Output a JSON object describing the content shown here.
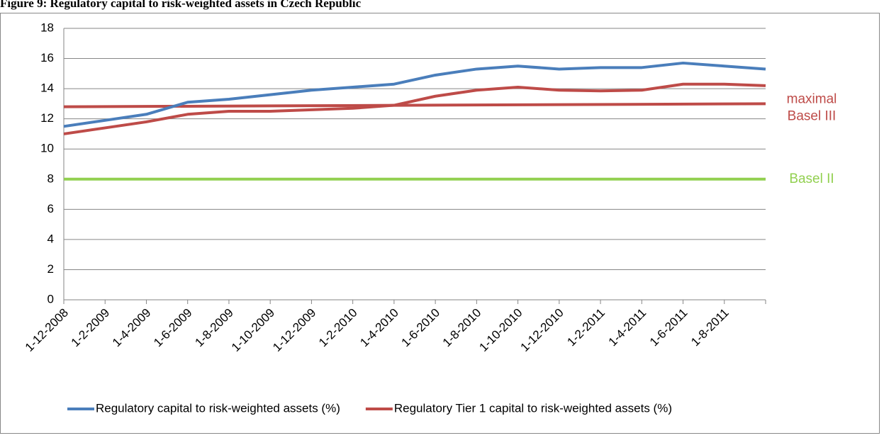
{
  "chart_data": {
    "type": "line",
    "title": "Figure 9: Regulatory capital to risk-weighted assets in Czech Republic",
    "categories": [
      "1-12-2008",
      "1-2-2009",
      "1-4-2009",
      "1-6-2009",
      "1-8-2009",
      "1-10-2009",
      "1-12-2009",
      "1-2-2010",
      "1-4-2010",
      "1-6-2010",
      "1-8-2010",
      "1-10-2010",
      "1-12-2010",
      "1-2-2011",
      "1-4-2011",
      "1-6-2011",
      "1-8-2011",
      null
    ],
    "series": [
      {
        "name": "Regulatory capital to risk-weighted assets (%)",
        "color": "#4a7ebb",
        "values": [
          11.5,
          11.9,
          12.3,
          13.1,
          13.3,
          13.6,
          13.9,
          14.1,
          14.3,
          14.9,
          15.3,
          15.5,
          15.3,
          15.4,
          15.4,
          15.7,
          15.5,
          15.3
        ]
      },
      {
        "name": "Regulatory Tier 1 capital to risk-weighted assets (%)",
        "color": "#be4b48",
        "values": [
          11.0,
          11.4,
          11.8,
          12.3,
          12.5,
          12.5,
          12.6,
          12.7,
          12.9,
          13.5,
          13.9,
          14.1,
          13.9,
          13.85,
          13.9,
          14.3,
          14.3,
          14.2
        ]
      }
    ],
    "reference_lines": [
      {
        "label_lines": [
          "maximal",
          "Basel III"
        ],
        "color": "#be4b48",
        "values": [
          12.8,
          13.0
        ]
      },
      {
        "label_lines": [
          "Basel II"
        ],
        "color": "#92d050",
        "values": [
          8,
          8
        ]
      }
    ],
    "ylim": [
      0,
      18
    ],
    "yticks": [
      0,
      2,
      4,
      6,
      8,
      10,
      12,
      14,
      16,
      18
    ],
    "grid": true,
    "legend": "bottom"
  }
}
